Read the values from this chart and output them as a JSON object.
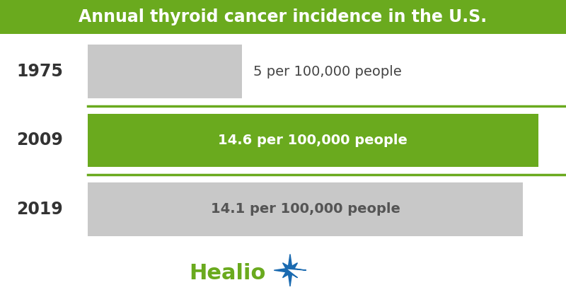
{
  "title": "Annual thyroid cancer incidence in the U.S.",
  "title_bg_color": "#6aaa1e",
  "title_text_color": "#ffffff",
  "background_color": "#ffffff",
  "categories": [
    "1975",
    "2009",
    "2019"
  ],
  "values": [
    5.0,
    14.6,
    14.1
  ],
  "max_value": 15.5,
  "bar_colors": [
    "#c8c8c8",
    "#6aaa1e",
    "#c8c8c8"
  ],
  "bar_labels": [
    "5 per 100,000 people",
    "14.6 per 100,000 people",
    "14.1 per 100,000 people"
  ],
  "label_colors": [
    "#444444",
    "#ffffff",
    "#555555"
  ],
  "divider_color": "#6aaa1e",
  "year_label_color": "#333333",
  "healio_text_color": "#6aaa1e",
  "healio_star_color": "#1a6ab0",
  "title_fontsize": 17,
  "bar_label_fontsize": 14,
  "year_fontsize": 17,
  "healio_fontsize": 22
}
